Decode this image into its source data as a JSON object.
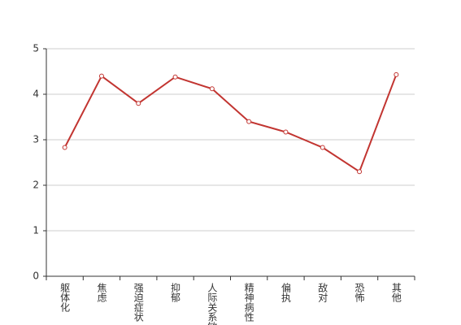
{
  "chart_data": {
    "type": "line",
    "categories": [
      "躯体化",
      "焦虑",
      "强迫症状",
      "抑郁",
      "人际关系敏",
      "精神病性",
      "偏执",
      "敌对",
      "恐怖",
      "其他"
    ],
    "values": [
      2.83,
      4.4,
      3.8,
      4.38,
      4.12,
      3.4,
      3.17,
      2.83,
      2.3,
      4.43
    ],
    "color": "#c23531",
    "ylim": [
      0,
      5
    ],
    "yticks": [
      0,
      1,
      2,
      3,
      4,
      5
    ],
    "grid": true
  }
}
